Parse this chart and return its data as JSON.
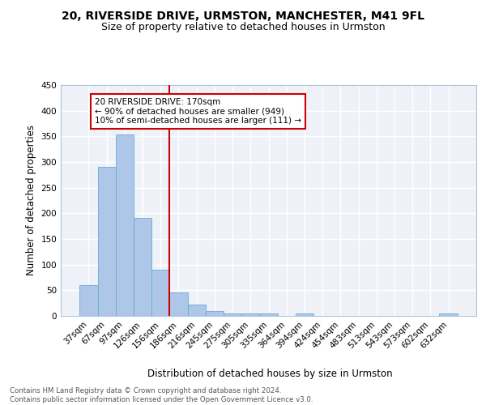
{
  "title": "20, RIVERSIDE DRIVE, URMSTON, MANCHESTER, M41 9FL",
  "subtitle": "Size of property relative to detached houses in Urmston",
  "xlabel": "Distribution of detached houses by size in Urmston",
  "ylabel": "Number of detached properties",
  "categories": [
    "37sqm",
    "67sqm",
    "97sqm",
    "126sqm",
    "156sqm",
    "186sqm",
    "216sqm",
    "245sqm",
    "275sqm",
    "305sqm",
    "335sqm",
    "364sqm",
    "394sqm",
    "424sqm",
    "454sqm",
    "483sqm",
    "513sqm",
    "543sqm",
    "573sqm",
    "602sqm",
    "632sqm"
  ],
  "values": [
    60,
    290,
    353,
    191,
    90,
    46,
    22,
    10,
    5,
    5,
    5,
    0,
    5,
    0,
    0,
    0,
    0,
    0,
    0,
    0,
    5
  ],
  "bar_color": "#aec6e8",
  "bar_edge_color": "#6aaad4",
  "subject_line_color": "#cc0000",
  "annotation_text": "20 RIVERSIDE DRIVE: 170sqm\n← 90% of detached houses are smaller (949)\n10% of semi-detached houses are larger (111) →",
  "annotation_box_color": "#cc0000",
  "ylim": [
    0,
    450
  ],
  "yticks": [
    0,
    50,
    100,
    150,
    200,
    250,
    300,
    350,
    400,
    450
  ],
  "title_fontsize": 10,
  "subtitle_fontsize": 9,
  "xlabel_fontsize": 8.5,
  "ylabel_fontsize": 8.5,
  "tick_fontsize": 7.5,
  "annotation_fontsize": 7.5,
  "footer_text": "Contains HM Land Registry data © Crown copyright and database right 2024.\nContains public sector information licensed under the Open Government Licence v3.0.",
  "background_color": "#eef2f8",
  "grid_color": "#ffffff",
  "spine_color": "#b0c4d8"
}
